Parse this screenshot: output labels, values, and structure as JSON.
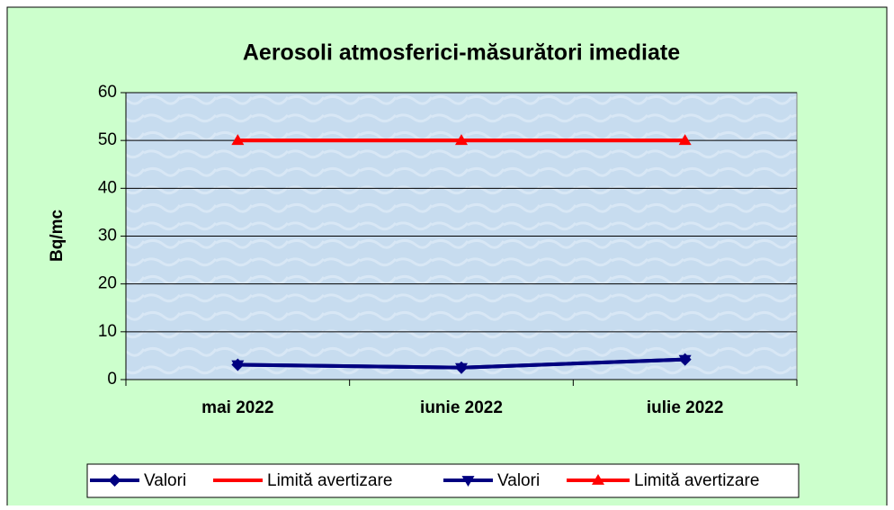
{
  "chart_data": {
    "type": "line",
    "title": "Aerosoli atmosferici-măsurători imediate",
    "ylabel": "Bq/mc",
    "categories": [
      "mai 2022",
      "iunie 2022",
      "iulie 2022"
    ],
    "series": [
      {
        "name": "Valori",
        "color": "#000080",
        "marker": "diamond",
        "values": [
          3.1,
          2.5,
          4.2
        ]
      },
      {
        "name": "Limită avertizare",
        "color": "#ff0000",
        "marker": "none",
        "values": [
          50,
          50,
          50
        ]
      },
      {
        "name": "Valori",
        "color": "#000080",
        "marker": "triangle-down",
        "values": [
          3.1,
          2.5,
          4.2
        ]
      },
      {
        "name": "Limită avertizare",
        "color": "#ff0000",
        "marker": "triangle-up",
        "values": [
          50,
          50,
          50
        ]
      }
    ],
    "ylim": [
      0,
      60
    ],
    "yticks": [
      0,
      10,
      20,
      30,
      40,
      50,
      60
    ],
    "grid": true,
    "legend": "bottom"
  }
}
